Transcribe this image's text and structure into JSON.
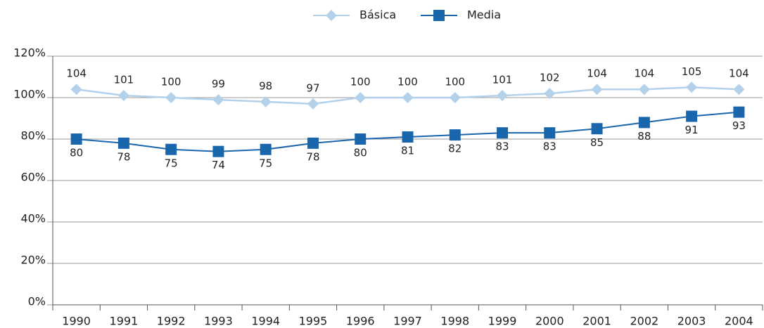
{
  "chart_data": {
    "type": "line",
    "categories": [
      "1990",
      "1991",
      "1992",
      "1993",
      "1994",
      "1995",
      "1996",
      "1997",
      "1998",
      "1999",
      "2000",
      "2001",
      "2002",
      "2003",
      "2004"
    ],
    "series": [
      {
        "name": "Básica",
        "color": "#b3d1ea",
        "values": [
          104,
          101,
          100,
          99,
          98,
          97,
          100,
          100,
          100,
          101,
          102,
          104,
          104,
          105,
          104
        ]
      },
      {
        "name": "Media",
        "color": "#1a66ad",
        "values": [
          80,
          78,
          75,
          74,
          75,
          78,
          80,
          81,
          82,
          83,
          83,
          85,
          88,
          91,
          93
        ]
      }
    ],
    "ylim": [
      0,
      120
    ],
    "yticks": [
      {
        "value": 0,
        "label": "0%"
      },
      {
        "value": 20,
        "label": "20%"
      },
      {
        "value": 40,
        "label": "40%"
      },
      {
        "value": 60,
        "label": "60%"
      },
      {
        "value": 80,
        "label": "80%"
      },
      {
        "value": 100,
        "label": "100%"
      },
      {
        "value": 120,
        "label": "120%"
      }
    ],
    "grid": true,
    "legend": "top"
  }
}
